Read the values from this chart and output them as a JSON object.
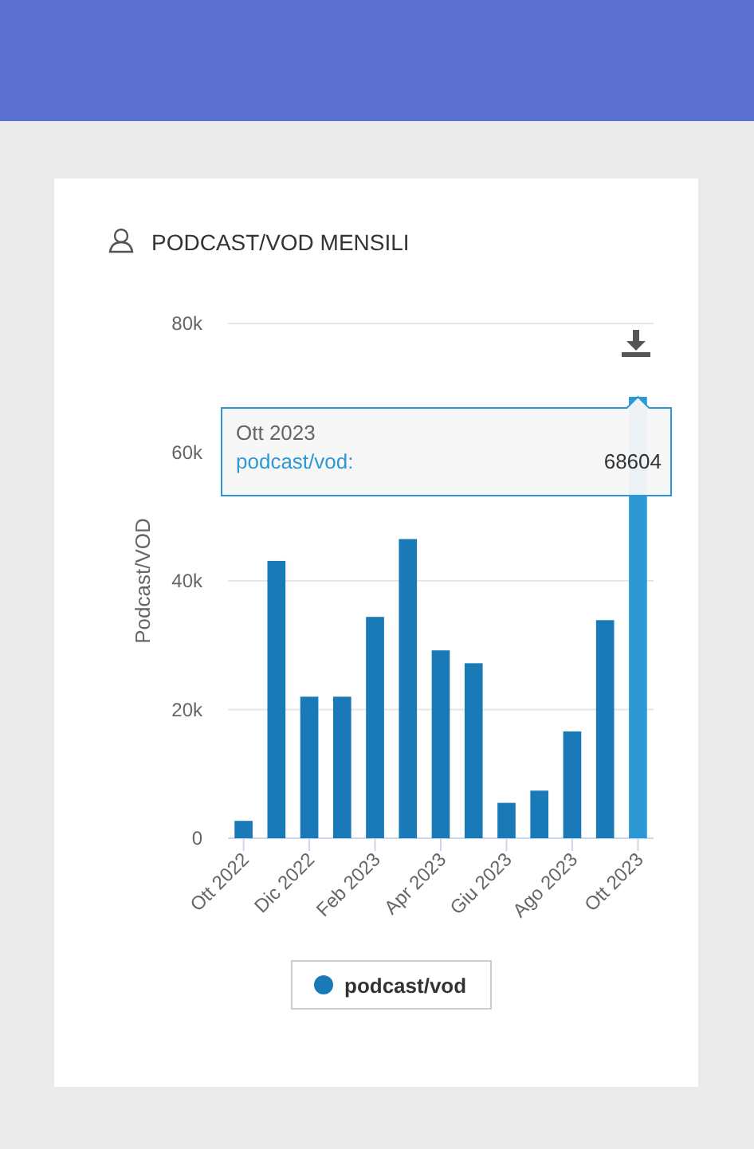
{
  "chart_data": {
    "type": "bar",
    "title": "PODCAST/VOD MENSILI",
    "ylabel": "Podcast/VOD",
    "categories": [
      "Ott 2022",
      null,
      "Dic 2022",
      null,
      "Feb 2023",
      null,
      "Apr 2023",
      null,
      "Giu 2023",
      null,
      "Ago 2023",
      null,
      "Ott 2023"
    ],
    "series": [
      {
        "name": "podcast/vod",
        "color": "#1a7ab8",
        "colors": [
          "#1a7ab8",
          "#1a7ab8",
          "#1a7ab8",
          "#1a7ab8",
          "#1a7ab8",
          "#1a7ab8",
          "#1a7ab8",
          "#1a7ab8",
          "#1a7ab8",
          "#1a7ab8",
          "#1a7ab8",
          "#1a7ab8",
          "#2c98d4"
        ],
        "values": [
          2700,
          43100,
          22000,
          22000,
          34400,
          46500,
          29200,
          27200,
          5500,
          7400,
          16600,
          33900,
          68604
        ]
      }
    ],
    "ylim": [
      0,
      80000
    ],
    "yticks": [
      {
        "value": 0,
        "label": "0"
      },
      {
        "value": 20000,
        "label": "20k"
      },
      {
        "value": 40000,
        "label": "40k"
      },
      {
        "value": 60000,
        "label": "60k"
      },
      {
        "value": 80000,
        "label": "80k"
      }
    ],
    "grid": "y",
    "legend": "bottom",
    "annotations": [
      "Ott 2023",
      "podcast/vod:",
      "68604"
    ]
  }
}
